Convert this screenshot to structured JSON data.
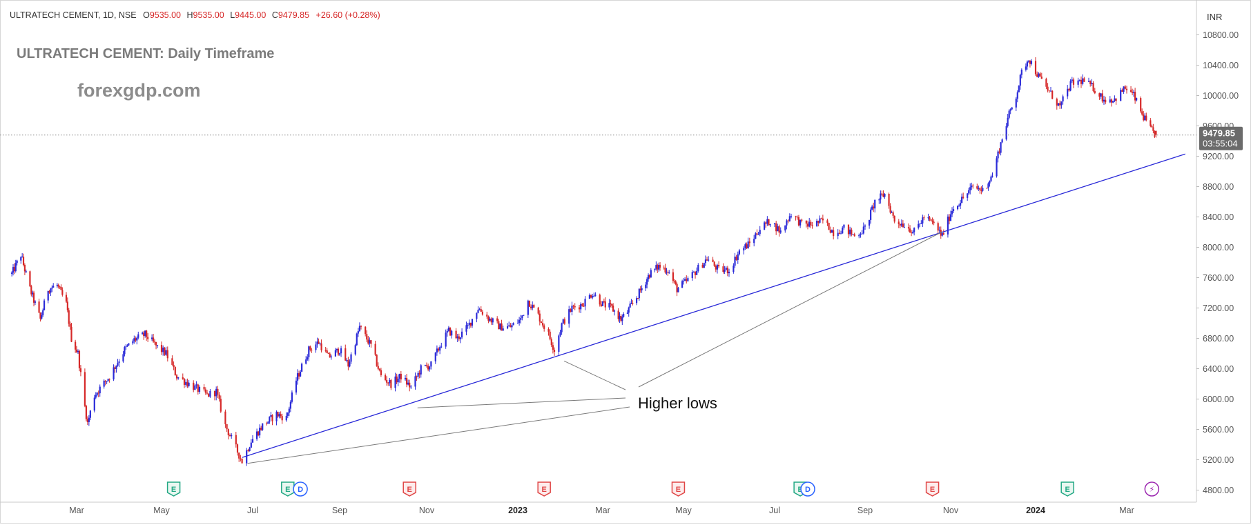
{
  "header": {
    "symbol": "ULTRATECH CEMENT, 1D, NSE",
    "o_label": "O",
    "o_value": "9535.00",
    "h_label": "H",
    "h_value": "9535.00",
    "l_label": "L",
    "l_value": "9445.00",
    "c_label": "C",
    "c_value": "9479.85",
    "change": "+26.60 (+0.28%)"
  },
  "watermark": {
    "title": "ULTRATECH CEMENT: Daily Timeframe",
    "site": "forexgdp.com"
  },
  "currency": "INR",
  "price_label": {
    "price": "9479.85",
    "countdown": "03:55:04"
  },
  "annotation_text": "Higher lows",
  "colors": {
    "up": "#2a2ad8",
    "down": "#d62828",
    "trendline": "#2a2ad8",
    "annotation": "#7a7a7a",
    "axis_text": "#555555",
    "grid": "#e6e6e6"
  },
  "event_markers": [
    {
      "letter": "E",
      "kind": "earnings-past",
      "date": "2022-05-10"
    },
    {
      "letter": "E",
      "kind": "earnings-past",
      "date": "2022-07-26"
    },
    {
      "letter": "D",
      "kind": "dividend",
      "date": "2022-08-04"
    },
    {
      "letter": "E",
      "kind": "earnings-upcoming",
      "date": "2022-10-20"
    },
    {
      "letter": "E",
      "kind": "earnings-upcoming",
      "date": "2023-01-20"
    },
    {
      "letter": "E",
      "kind": "earnings-upcoming",
      "date": "2023-04-28"
    },
    {
      "letter": "E",
      "kind": "earnings-past",
      "date": "2023-07-20"
    },
    {
      "letter": "D",
      "kind": "dividend",
      "date": "2023-07-25"
    },
    {
      "letter": "E",
      "kind": "earnings-upcoming",
      "date": "2023-10-19"
    },
    {
      "letter": "E",
      "kind": "earnings-past",
      "date": "2024-01-22"
    },
    {
      "letter": "⚡",
      "kind": "split",
      "date": "2024-03-19"
    }
  ],
  "chart_data": {
    "type": "candlestick",
    "title": "ULTRATECH CEMENT: Daily Timeframe",
    "interval": "1D",
    "ylabel": "INR",
    "y_ticks": [
      4800,
      5200,
      5600,
      6000,
      6400,
      6800,
      7200,
      7600,
      8000,
      8400,
      8800,
      9200,
      9600,
      10000,
      10400,
      10800
    ],
    "y_tick_labels": [
      "4800.00",
      "5200.00",
      "5600.00",
      "6000.00",
      "6400.00",
      "6800.00",
      "7200.00",
      "7600.00",
      "8000.00",
      "8400.00",
      "8800.00",
      "9200.00",
      "9600.00",
      "10000.00",
      "10400.00",
      "10800.00"
    ],
    "x_ticks": [
      {
        "label": "Mar",
        "date": "2022-03-01",
        "bold": false
      },
      {
        "label": "May",
        "date": "2022-05-02",
        "bold": false
      },
      {
        "label": "Jul",
        "date": "2022-07-01",
        "bold": false
      },
      {
        "label": "Sep",
        "date": "2022-09-01",
        "bold": false
      },
      {
        "label": "Nov",
        "date": "2022-11-01",
        "bold": false
      },
      {
        "label": "2023",
        "date": "2023-01-02",
        "bold": true
      },
      {
        "label": "Mar",
        "date": "2023-03-01",
        "bold": false
      },
      {
        "label": "May",
        "date": "2023-05-02",
        "bold": false
      },
      {
        "label": "Jul",
        "date": "2023-07-03",
        "bold": false
      },
      {
        "label": "Sep",
        "date": "2023-09-01",
        "bold": false
      },
      {
        "label": "Nov",
        "date": "2023-11-01",
        "bold": false
      },
      {
        "label": "2024",
        "date": "2024-01-01",
        "bold": true
      },
      {
        "label": "Mar",
        "date": "2024-03-01",
        "bold": false
      }
    ],
    "price_path": [
      [
        "2022-01-10",
        7650
      ],
      [
        "2022-01-17",
        7900
      ],
      [
        "2022-01-24",
        7450
      ],
      [
        "2022-02-01",
        7050
      ],
      [
        "2022-02-07",
        7450
      ],
      [
        "2022-02-14",
        7500
      ],
      [
        "2022-02-21",
        7250
      ],
      [
        "2022-02-25",
        6800
      ],
      [
        "2022-03-02",
        6600
      ],
      [
        "2022-03-07",
        5900
      ],
      [
        "2022-03-09",
        5680
      ],
      [
        "2022-03-14",
        6050
      ],
      [
        "2022-03-25",
        6300
      ],
      [
        "2022-04-05",
        6650
      ],
      [
        "2022-04-12",
        6780
      ],
      [
        "2022-04-20",
        6850
      ],
      [
        "2022-04-28",
        6700
      ],
      [
        "2022-05-05",
        6600
      ],
      [
        "2022-05-12",
        6300
      ],
      [
        "2022-05-20",
        6200
      ],
      [
        "2022-06-01",
        6050
      ],
      [
        "2022-06-07",
        6100
      ],
      [
        "2022-06-13",
        5650
      ],
      [
        "2022-06-20",
        5350
      ],
      [
        "2022-06-24",
        5180
      ],
      [
        "2022-06-30",
        5450
      ],
      [
        "2022-07-08",
        5650
      ],
      [
        "2022-07-18",
        5800
      ],
      [
        "2022-07-25",
        5750
      ],
      [
        "2022-08-01",
        6250
      ],
      [
        "2022-08-10",
        6650
      ],
      [
        "2022-08-17",
        6750
      ],
      [
        "2022-08-24",
        6550
      ],
      [
        "2022-09-01",
        6650
      ],
      [
        "2022-09-07",
        6450
      ],
      [
        "2022-09-15",
        6950
      ],
      [
        "2022-09-23",
        6700
      ],
      [
        "2022-09-30",
        6300
      ],
      [
        "2022-10-07",
        6200
      ],
      [
        "2022-10-14",
        6300
      ],
      [
        "2022-10-21",
        6150
      ],
      [
        "2022-10-28",
        6400
      ],
      [
        "2022-11-04",
        6450
      ],
      [
        "2022-11-10",
        6700
      ],
      [
        "2022-11-16",
        6900
      ],
      [
        "2022-11-22",
        6800
      ],
      [
        "2022-11-29",
        6950
      ],
      [
        "2022-12-06",
        7200
      ],
      [
        "2022-12-14",
        7050
      ],
      [
        "2022-12-21",
        6950
      ],
      [
        "2022-12-28",
        6950
      ],
      [
        "2023-01-04",
        7050
      ],
      [
        "2023-01-09",
        7300
      ],
      [
        "2023-01-16",
        7100
      ],
      [
        "2023-01-23",
        6850
      ],
      [
        "2023-01-27",
        6650
      ],
      [
        "2023-02-01",
        6980
      ],
      [
        "2023-02-08",
        7200
      ],
      [
        "2023-02-15",
        7250
      ],
      [
        "2023-02-22",
        7400
      ],
      [
        "2023-03-01",
        7250
      ],
      [
        "2023-03-08",
        7200
      ],
      [
        "2023-03-15",
        7050
      ],
      [
        "2023-03-20",
        7150
      ],
      [
        "2023-03-29",
        7400
      ],
      [
        "2023-04-06",
        7650
      ],
      [
        "2023-04-13",
        7750
      ],
      [
        "2023-04-20",
        7700
      ],
      [
        "2023-04-27",
        7450
      ],
      [
        "2023-05-04",
        7550
      ],
      [
        "2023-05-11",
        7700
      ],
      [
        "2023-05-18",
        7850
      ],
      [
        "2023-05-26",
        7700
      ],
      [
        "2023-06-02",
        7700
      ],
      [
        "2023-06-09",
        7950
      ],
      [
        "2023-06-16",
        8050
      ],
      [
        "2023-06-23",
        8250
      ],
      [
        "2023-06-30",
        8350
      ],
      [
        "2023-07-07",
        8200
      ],
      [
        "2023-07-14",
        8450
      ],
      [
        "2023-07-21",
        8300
      ],
      [
        "2023-07-28",
        8300
      ],
      [
        "2023-08-04",
        8350
      ],
      [
        "2023-08-11",
        8200
      ],
      [
        "2023-08-18",
        8250
      ],
      [
        "2023-08-25",
        8150
      ],
      [
        "2023-09-01",
        8250
      ],
      [
        "2023-09-08",
        8600
      ],
      [
        "2023-09-15",
        8700
      ],
      [
        "2023-09-22",
        8350
      ],
      [
        "2023-09-29",
        8300
      ],
      [
        "2023-10-06",
        8200
      ],
      [
        "2023-10-13",
        8400
      ],
      [
        "2023-10-20",
        8300
      ],
      [
        "2023-10-26",
        8150
      ],
      [
        "2023-11-02",
        8500
      ],
      [
        "2023-11-10",
        8650
      ],
      [
        "2023-11-17",
        8800
      ],
      [
        "2023-11-24",
        8750
      ],
      [
        "2023-12-01",
        8950
      ],
      [
        "2023-12-06",
        9300
      ],
      [
        "2023-12-12",
        9700
      ],
      [
        "2023-12-18",
        10000
      ],
      [
        "2023-12-22",
        10300
      ],
      [
        "2023-12-27",
        10500
      ],
      [
        "2024-01-03",
        10250
      ],
      [
        "2024-01-10",
        10050
      ],
      [
        "2024-01-17",
        9850
      ],
      [
        "2024-01-24",
        10150
      ],
      [
        "2024-02-01",
        10200
      ],
      [
        "2024-02-08",
        10100
      ],
      [
        "2024-02-15",
        9950
      ],
      [
        "2024-02-22",
        9950
      ],
      [
        "2024-02-29",
        10100
      ],
      [
        "2024-03-06",
        10000
      ],
      [
        "2024-03-12",
        9750
      ],
      [
        "2024-03-18",
        9550
      ],
      [
        "2024-03-22",
        9480
      ]
    ],
    "trendline": {
      "from": [
        "2022-06-24",
        5230
      ],
      "to": [
        "2024-04-12",
        9230
      ]
    },
    "higher_low_points": [
      [
        "2022-06-24",
        5180
      ],
      [
        "2022-10-28",
        6030
      ],
      [
        "2023-01-27",
        6620
      ],
      [
        "2023-10-27",
        8150
      ]
    ],
    "last": {
      "open": 9535.0,
      "high": 9535.0,
      "low": 9445.0,
      "close": 9479.85,
      "change": 26.6,
      "change_pct": 0.28
    }
  }
}
